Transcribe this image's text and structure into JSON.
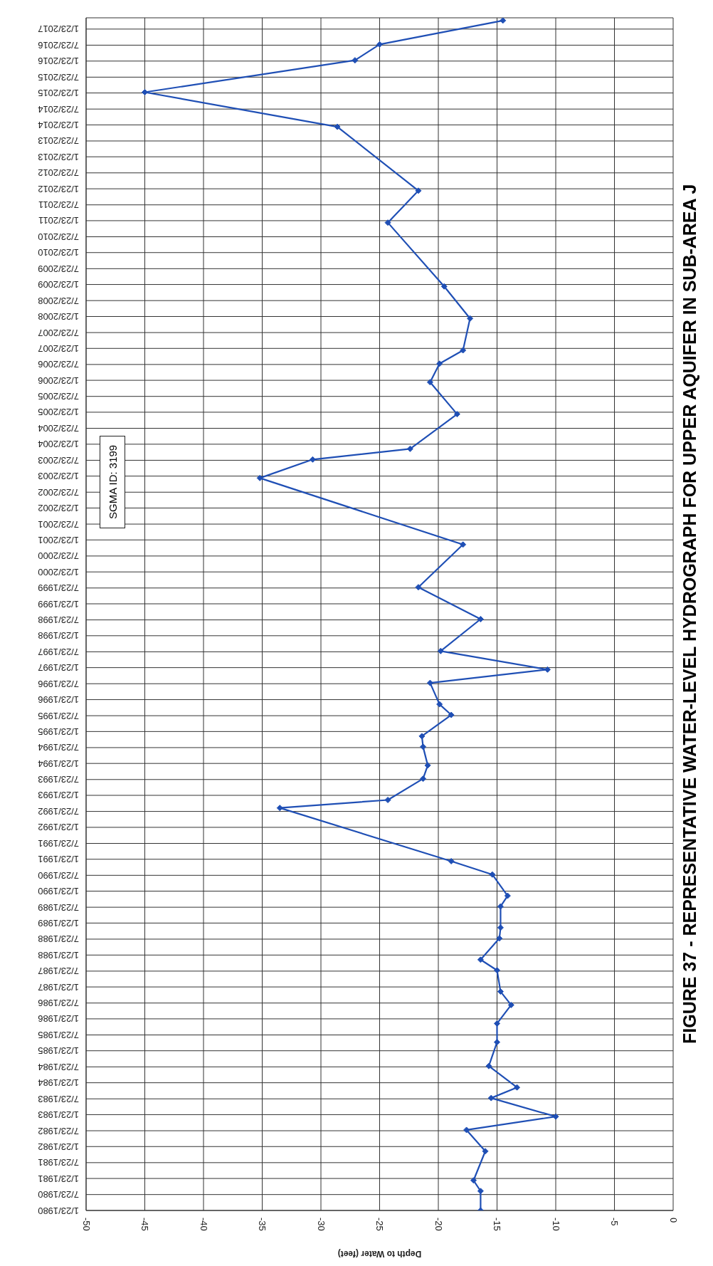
{
  "chart_data": {
    "type": "line",
    "title": "FIGURE 37 - REPRESENTATIVE WATER-LEVEL HYDROGRAPH FOR UPPER AQUIFER IN SUB-AREA J",
    "xlabel": "Depth to Water (feet)",
    "annotations": [
      "SGMA ID: 3199"
    ],
    "x": [
      "1980-01-23",
      "1980-09",
      "1981-01",
      "1981-12",
      "1982-08",
      "1983-01",
      "1983-08",
      "1983-12",
      "1984-08",
      "1985-05",
      "1985-12",
      "1986-07",
      "1986-12",
      "1987-08",
      "1987-12",
      "1988-08",
      "1988-12",
      "1989-08",
      "1989-12",
      "1990-08",
      "1991-01",
      "1992-09",
      "1992-12",
      "1993-08",
      "1994-01",
      "1994-08",
      "1994-12",
      "1995-08",
      "1995-12",
      "1996-08",
      "1997-01",
      "1997-08",
      "1998-08",
      "1999-08",
      "2000-12",
      "2003-01",
      "2003-08",
      "2003-12",
      "2005-01",
      "2006-01",
      "2006-08",
      "2007-01",
      "2008-01",
      "2009-01",
      "2011-01",
      "2012-01",
      "2014-01",
      "2015-02",
      "2016-02",
      "2016-08",
      "2017-05"
    ],
    "series": [
      {
        "color": "#1f4fb5",
        "values": [
          -16.4,
          -16.4,
          -17.0,
          -16.0,
          -17.6,
          -10.0,
          -15.5,
          -13.3,
          -15.7,
          -15.0,
          -15.0,
          -13.8,
          -14.7,
          -15.0,
          -16.4,
          -14.8,
          -14.7,
          -14.7,
          -14.1,
          -15.4,
          -18.9,
          -33.5,
          -24.3,
          -21.3,
          -20.9,
          -21.3,
          -21.4,
          -18.9,
          -19.9,
          -20.7,
          -10.7,
          -19.8,
          -16.4,
          -21.7,
          -17.9,
          -35.2,
          -30.7,
          -22.4,
          -18.4,
          -20.7,
          -19.9,
          -17.9,
          -17.3,
          -19.5,
          -24.3,
          -21.7,
          -28.6,
          -45.0,
          -27.1,
          -25.0,
          -14.5
        ]
      }
    ],
    "orientation": "horizontal",
    "xlim": [
      -50,
      0
    ],
    "xticks": [
      -50,
      -45,
      -40,
      -35,
      -30,
      -25,
      -20,
      -15,
      -10,
      -5,
      0
    ],
    "ylim": [
      "1980-01-23",
      "2017-06-01"
    ],
    "yticks": [
      {
        "value": "1980-01-23",
        "label": "1/23/1980"
      },
      {
        "value": "1980-07-23",
        "label": "7/23/1980"
      },
      {
        "value": "1981-01-23",
        "label": "1/23/1981"
      },
      {
        "value": "1981-07-23",
        "label": "7/23/1981"
      },
      {
        "value": "1982-01-23",
        "label": "1/23/1982"
      },
      {
        "value": "1982-07-23",
        "label": "7/23/1982"
      },
      {
        "value": "1983-01-23",
        "label": "1/23/1983"
      },
      {
        "value": "1983-07-23",
        "label": "7/23/1983"
      },
      {
        "value": "1984-01-23",
        "label": "1/23/1984"
      },
      {
        "value": "1984-07-23",
        "label": "7/23/1984"
      },
      {
        "value": "1985-01-23",
        "label": "1/23/1985"
      },
      {
        "value": "1985-07-23",
        "label": "7/23/1985"
      },
      {
        "value": "1986-01-23",
        "label": "1/23/1986"
      },
      {
        "value": "1986-07-23",
        "label": "7/23/1986"
      },
      {
        "value": "1987-01-23",
        "label": "1/23/1987"
      },
      {
        "value": "1987-07-23",
        "label": "7/23/1987"
      },
      {
        "value": "1988-01-23",
        "label": "1/23/1988"
      },
      {
        "value": "1988-07-23",
        "label": "7/23/1988"
      },
      {
        "value": "1989-01-23",
        "label": "1/23/1989"
      },
      {
        "value": "1989-07-23",
        "label": "7/23/1989"
      },
      {
        "value": "1990-01-23",
        "label": "1/23/1990"
      },
      {
        "value": "1990-07-23",
        "label": "7/23/1990"
      },
      {
        "value": "1991-01-23",
        "label": "1/23/1991"
      },
      {
        "value": "1991-07-23",
        "label": "7/23/1991"
      },
      {
        "value": "1992-01-23",
        "label": "1/23/1992"
      },
      {
        "value": "1992-07-23",
        "label": "7/23/1992"
      },
      {
        "value": "1993-01-23",
        "label": "1/23/1993"
      },
      {
        "value": "1993-07-23",
        "label": "7/23/1993"
      },
      {
        "value": "1994-01-23",
        "label": "1/23/1994"
      },
      {
        "value": "1994-07-23",
        "label": "7/23/1994"
      },
      {
        "value": "1995-01-23",
        "label": "1/23/1995"
      },
      {
        "value": "1995-07-23",
        "label": "7/23/1995"
      },
      {
        "value": "1996-01-23",
        "label": "1/23/1996"
      },
      {
        "value": "1996-07-23",
        "label": "7/23/1996"
      },
      {
        "value": "1997-01-23",
        "label": "1/23/1997"
      },
      {
        "value": "1997-07-23",
        "label": "7/23/1997"
      },
      {
        "value": "1998-01-23",
        "label": "1/23/1998"
      },
      {
        "value": "1998-07-23",
        "label": "7/23/1998"
      },
      {
        "value": "1999-01-23",
        "label": "1/23/1999"
      },
      {
        "value": "1999-07-23",
        "label": "7/23/1999"
      },
      {
        "value": "2000-01-23",
        "label": "1/23/2000"
      },
      {
        "value": "2000-07-23",
        "label": "7/23/2000"
      },
      {
        "value": "2001-01-23",
        "label": "1/23/2001"
      },
      {
        "value": "2001-07-23",
        "label": "7/23/2001"
      },
      {
        "value": "2002-01-23",
        "label": "1/23/2002"
      },
      {
        "value": "2002-07-23",
        "label": "7/23/2002"
      },
      {
        "value": "2003-01-23",
        "label": "1/23/2003"
      },
      {
        "value": "2003-07-23",
        "label": "7/23/2003"
      },
      {
        "value": "2004-01-23",
        "label": "1/23/2004"
      },
      {
        "value": "2004-07-23",
        "label": "7/23/2004"
      },
      {
        "value": "2005-01-23",
        "label": "1/23/2005"
      },
      {
        "value": "2005-07-23",
        "label": "7/23/2005"
      },
      {
        "value": "2006-01-23",
        "label": "1/23/2006"
      },
      {
        "value": "2006-07-23",
        "label": "7/23/2006"
      },
      {
        "value": "2007-01-23",
        "label": "1/23/2007"
      },
      {
        "value": "2007-07-23",
        "label": "7/23/2007"
      },
      {
        "value": "2008-01-23",
        "label": "1/23/2008"
      },
      {
        "value": "2008-07-23",
        "label": "7/23/2008"
      },
      {
        "value": "2009-01-23",
        "label": "1/23/2009"
      },
      {
        "value": "2009-07-23",
        "label": "7/23/2009"
      },
      {
        "value": "2010-01-23",
        "label": "1/23/2010"
      },
      {
        "value": "2010-07-23",
        "label": "7/23/2010"
      },
      {
        "value": "2011-01-23",
        "label": "1/23/2011"
      },
      {
        "value": "2011-07-23",
        "label": "7/23/2011"
      },
      {
        "value": "2012-01-23",
        "label": "1/23/2012"
      },
      {
        "value": "2012-07-23",
        "label": "7/23/2012"
      },
      {
        "value": "2013-01-23",
        "label": "1/23/2013"
      },
      {
        "value": "2013-07-23",
        "label": "7/23/2013"
      },
      {
        "value": "2014-01-23",
        "label": "1/23/2014"
      },
      {
        "value": "2014-07-23",
        "label": "7/23/2014"
      },
      {
        "value": "2015-01-23",
        "label": "1/23/2015"
      },
      {
        "value": "2015-07-23",
        "label": "7/23/2015"
      },
      {
        "value": "2016-01-23",
        "label": "1/23/2016"
      },
      {
        "value": "2016-07-23",
        "label": "7/23/2016"
      },
      {
        "value": "2017-01-23",
        "label": "1/23/2017"
      }
    ],
    "grid": true,
    "marker": "diamond",
    "line_style": "solid"
  }
}
